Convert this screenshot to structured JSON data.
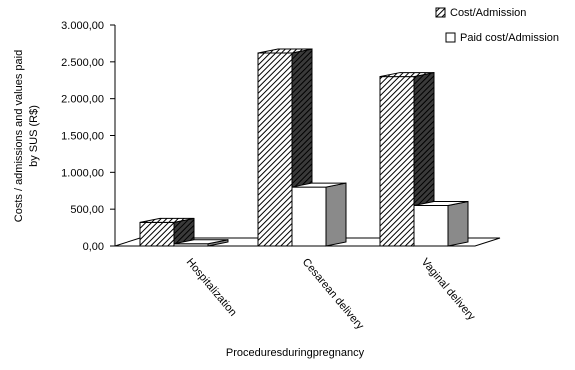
{
  "chart_data": {
    "type": "bar",
    "title": "",
    "xlabel": "Proceduresduringpregnancy",
    "ylabel_lines": [
      "Costs / admissions and values paid",
      "by SUS (R$)"
    ],
    "categories": [
      "Hospitalization",
      "Cesarean delivery",
      "Vaginal delivery"
    ],
    "ylim": [
      0,
      3000
    ],
    "yticks": [
      "0,00",
      "500,00",
      "1.000,00",
      "1.500,00",
      "2.000,00",
      "2.500,00",
      "3.000,00"
    ],
    "ytick_values": [
      0,
      500,
      1000,
      1500,
      2000,
      2500,
      3000
    ],
    "series": [
      {
        "name": "Cost/Admission",
        "values": [
          320,
          2620,
          2300
        ],
        "pattern": "hatched"
      },
      {
        "name": "Paid cost/Admission",
        "values": [
          30,
          800,
          550
        ],
        "pattern": "white"
      }
    ],
    "legend_position": "top-right",
    "grid": false,
    "style": "3d-bar",
    "colors": {
      "hatch": "#000000",
      "side_dark": "#555555",
      "white_side": "#8a8a8a",
      "axis": "#000000"
    }
  }
}
